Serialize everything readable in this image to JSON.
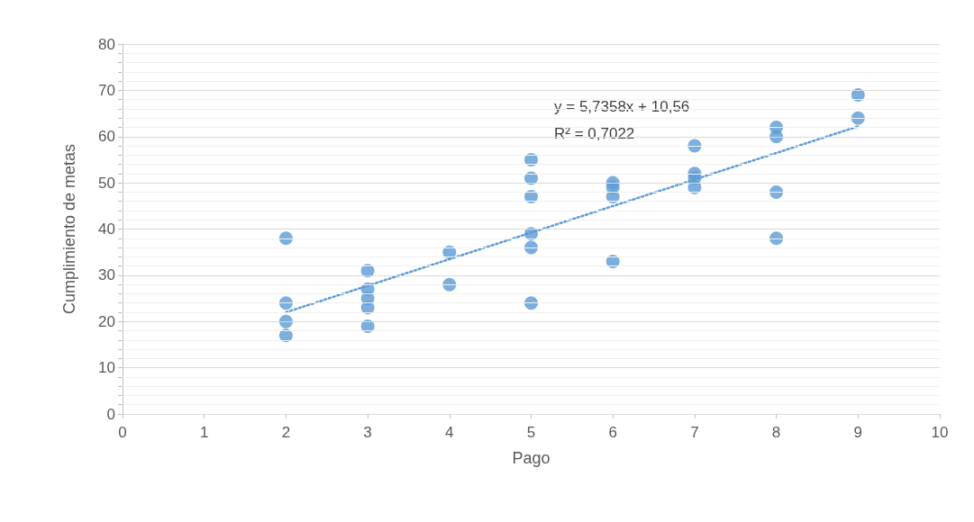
{
  "chart_data": {
    "type": "scatter",
    "xlabel": "Pago",
    "ylabel": "Cumplimiento de metas",
    "series": [
      {
        "color": "#5b9bd5",
        "x": [
          2,
          2,
          2,
          2,
          3,
          3,
          3,
          3,
          3,
          4,
          4,
          5,
          5,
          5,
          5,
          5,
          5,
          6,
          6,
          6,
          6,
          7,
          7,
          7,
          7,
          8,
          8,
          8,
          8,
          9,
          9
        ],
        "values": [
          38,
          24,
          20,
          17,
          31,
          27,
          25,
          23,
          19,
          35,
          28,
          55,
          51,
          47,
          39,
          36,
          24,
          50,
          49,
          47,
          33,
          58,
          52,
          51,
          49,
          62,
          60,
          48,
          38,
          69,
          64
        ],
        "marker": "circle"
      },
      {
        "type": "line",
        "color": "#5b9bd5",
        "x": [
          2,
          9
        ],
        "values": [
          22,
          62.2
        ],
        "line_style": "dotted",
        "marker": "none"
      }
    ],
    "annotations": [
      "y = 5,7358x + 10,56",
      "R² = 0,7022"
    ],
    "xlim": [
      0,
      10
    ],
    "xticks": [
      0,
      1,
      2,
      3,
      4,
      5,
      6,
      7,
      8,
      9,
      10
    ],
    "ylim": [
      0,
      80
    ],
    "yticks": [
      0,
      {
        "value": 2,
        "label": null
      },
      {
        "value": 4,
        "label": null
      },
      {
        "value": 6,
        "label": null
      },
      {
        "value": 8,
        "label": null
      },
      10,
      {
        "value": 12,
        "label": null
      },
      {
        "value": 14,
        "label": null
      },
      {
        "value": 16,
        "label": null
      },
      {
        "value": 18,
        "label": null
      },
      20,
      {
        "value": 22,
        "label": null
      },
      {
        "value": 24,
        "label": null
      },
      {
        "value": 26,
        "label": null
      },
      {
        "value": 28,
        "label": null
      },
      30,
      {
        "value": 32,
        "label": null
      },
      {
        "value": 34,
        "label": null
      },
      {
        "value": 36,
        "label": null
      },
      {
        "value": 38,
        "label": null
      },
      40,
      {
        "value": 42,
        "label": null
      },
      {
        "value": 44,
        "label": null
      },
      {
        "value": 46,
        "label": null
      },
      {
        "value": 48,
        "label": null
      },
      50,
      {
        "value": 52,
        "label": null
      },
      {
        "value": 54,
        "label": null
      },
      {
        "value": 56,
        "label": null
      },
      {
        "value": 58,
        "label": null
      },
      60,
      {
        "value": 62,
        "label": null
      },
      {
        "value": 64,
        "label": null
      },
      {
        "value": 66,
        "label": null
      },
      {
        "value": 68,
        "label": null
      },
      70,
      {
        "value": 72,
        "label": null
      },
      {
        "value": 74,
        "label": null
      },
      {
        "value": 76,
        "label": null
      },
      {
        "value": 78,
        "label": null
      },
      80
    ],
    "grid": "y"
  }
}
